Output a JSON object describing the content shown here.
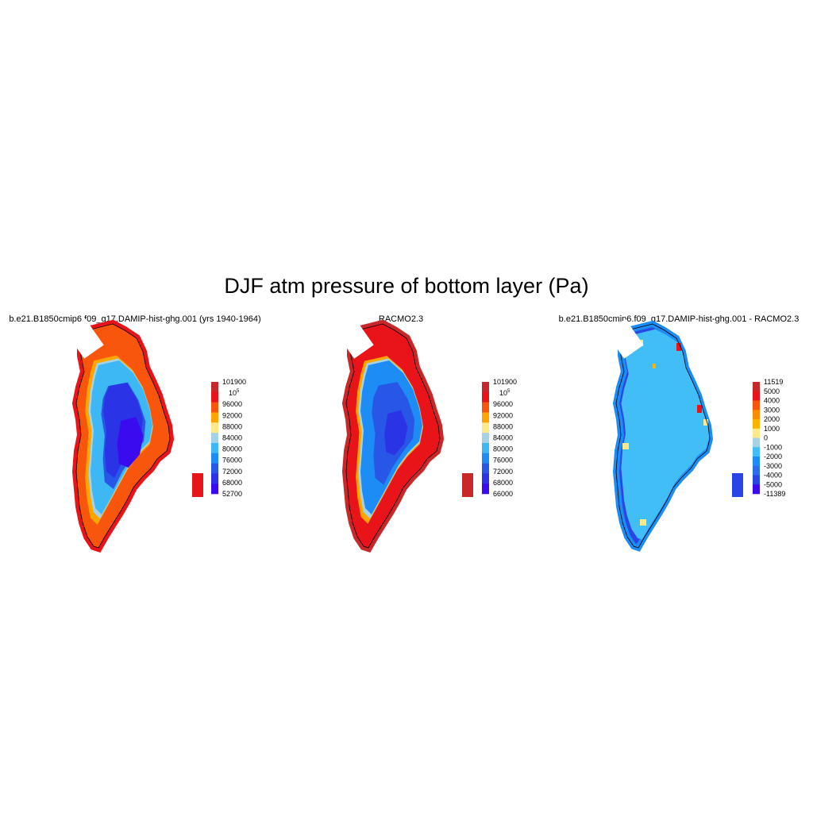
{
  "figure": {
    "title": "DJF atm pressure of bottom layer (Pa)"
  },
  "panels": [
    {
      "title": "b.e21.B1850cmip6.f09_g17.DAMIP-hist-ghg.001 (yrs 1940-1964)",
      "colorbar": {
        "labels": [
          "101900",
          "10^5",
          "96000",
          "92000",
          "88000",
          "84000",
          "80000",
          "76000",
          "72000",
          "68000",
          "52700"
        ],
        "colors": [
          "#c8282a",
          "#e8141a",
          "#f8560c",
          "#ffa500",
          "#ffe98a",
          "#a6d2e6",
          "#3db8f5",
          "#1e8cf5",
          "#2857e8",
          "#2a33e6",
          "#3b0bf0"
        ]
      }
    },
    {
      "title": "RACMO2.3",
      "colorbar": {
        "labels": [
          "101900",
          "10^5",
          "96000",
          "92000",
          "88000",
          "84000",
          "80000",
          "76000",
          "72000",
          "68000",
          "66000"
        ],
        "colors": [
          "#c8282a",
          "#e8141a",
          "#f8560c",
          "#ffa500",
          "#ffe98a",
          "#a6d2e6",
          "#3db8f5",
          "#1e8cf5",
          "#2857e8",
          "#2a33e6",
          "#3b0bf0"
        ]
      }
    },
    {
      "title": "b.e21.B1850cmip6.f09_g17.DAMIP-hist-ghg.001 - RACMO2.3",
      "colorbar": {
        "labels": [
          "11519",
          "5000",
          "4000",
          "3000",
          "2000",
          "1000",
          "0",
          "-1000",
          "-2000",
          "-3000",
          "-4000",
          "-5000",
          "-11389"
        ],
        "colors": [
          "#c8282a",
          "#e8141a",
          "#f8560c",
          "#ff8c00",
          "#ffb300",
          "#ffe98a",
          "#a6d2e6",
          "#41bef5",
          "#1e8cf5",
          "#2a6fe8",
          "#2a45e6",
          "#3b0bf0"
        ]
      }
    }
  ]
}
